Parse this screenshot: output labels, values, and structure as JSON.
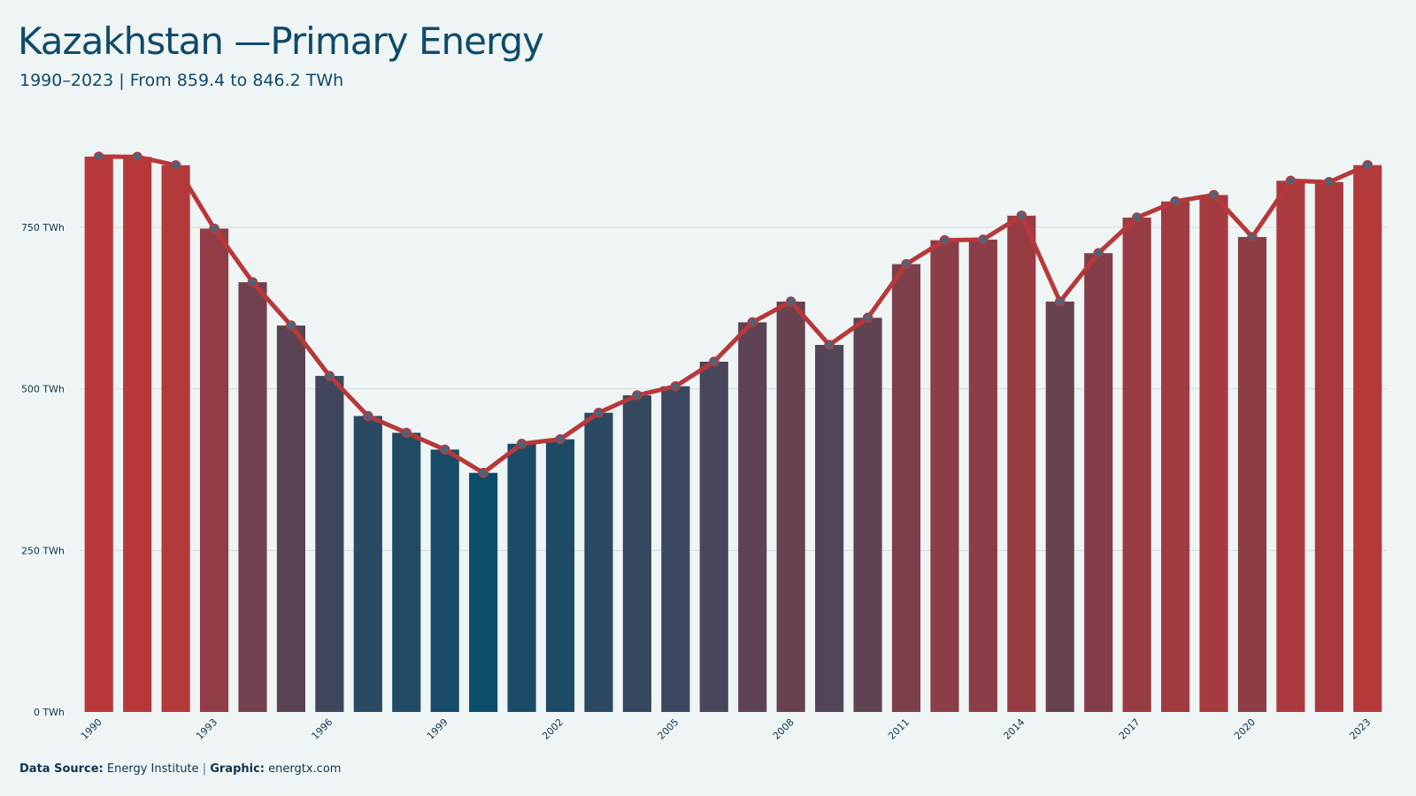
{
  "header": {
    "title": "Kazakhstan —Primary Energy",
    "subtitle": "1990–2023 | From 859.4 to 846.2 TWh"
  },
  "footer": {
    "source_label": "Data Source:",
    "source_value": "Energy Institute",
    "separator": "|",
    "graphic_label": "Graphic:",
    "graphic_value": "energtx.com"
  },
  "colors": {
    "high": "#b8383a",
    "low": "#0b4d6b",
    "line": "#b8383a",
    "marker_fill": "#4e6378",
    "grid": "#d2dede",
    "axis_text": "#0f3550"
  },
  "chart_data": {
    "type": "bar",
    "title": "Kazakhstan —Primary Energy",
    "subtitle": "1990–2023 | From 859.4 to 846.2 TWh",
    "xlabel": "",
    "ylabel": "",
    "ylim": [
      0,
      880
    ],
    "yticks": [
      0,
      250,
      500,
      750
    ],
    "ytick_labels": [
      "0 TWh",
      "250 TWh",
      "500 TWh",
      "750 TWh"
    ],
    "x": [
      1990,
      1991,
      1992,
      1993,
      1994,
      1995,
      1996,
      1997,
      1998,
      1999,
      2000,
      2001,
      2002,
      2003,
      2004,
      2005,
      2006,
      2007,
      2008,
      2009,
      2010,
      2011,
      2012,
      2013,
      2014,
      2015,
      2016,
      2017,
      2018,
      2019,
      2020,
      2021,
      2022,
      2023
    ],
    "xtick_labels": [
      "1990",
      "1993",
      "1996",
      "1999",
      "2002",
      "2005",
      "2008",
      "2011",
      "2014",
      "2017",
      "2020",
      "2023"
    ],
    "values": [
      859.4,
      859,
      846,
      748,
      665,
      598,
      520,
      458,
      432,
      406,
      370,
      415,
      422,
      463,
      490,
      504,
      542,
      603,
      635,
      568,
      610,
      693,
      730,
      731,
      768,
      635,
      710,
      765,
      790,
      800,
      735,
      822,
      820,
      846.2
    ],
    "overlay": "line with markers",
    "grid": "horizontal",
    "legend": "none"
  }
}
